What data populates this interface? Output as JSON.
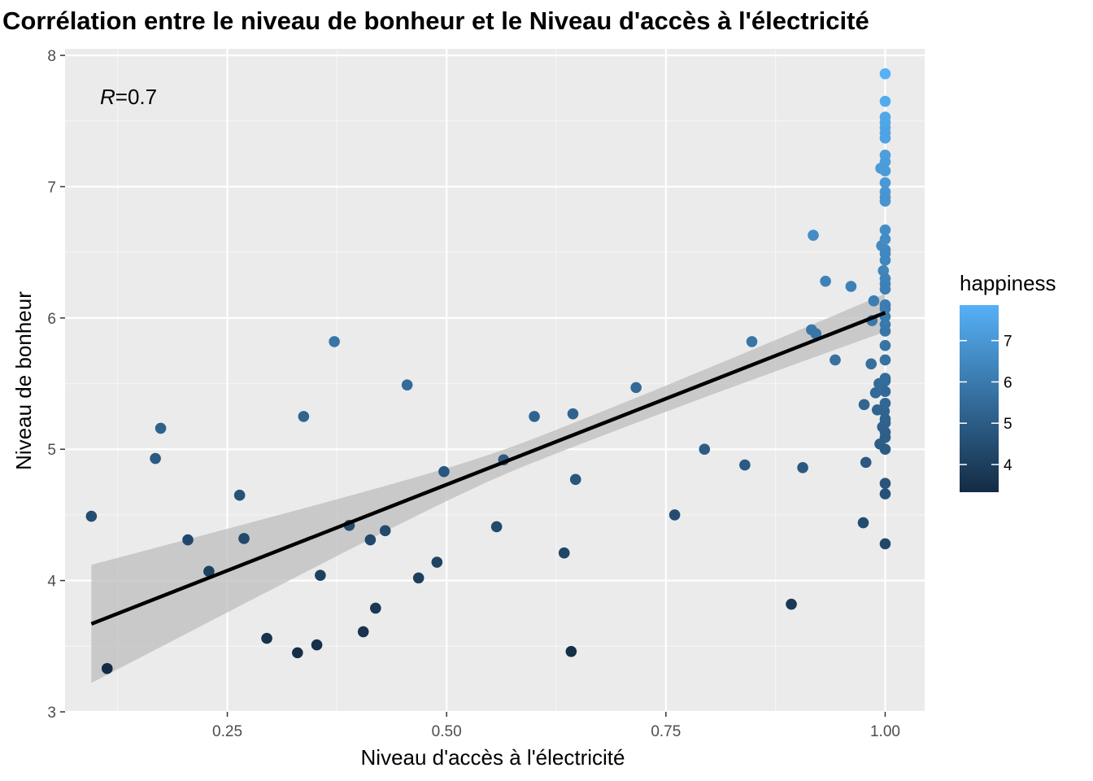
{
  "chart_data": {
    "type": "scatter",
    "title": "Corrélation entre le niveau de bonheur et le Niveau d'accès à l'électricité",
    "xlabel": "Niveau d'accès à l'électricité",
    "ylabel": "Niveau de bonheur",
    "xlim": [
      0.065,
      1.045
    ],
    "ylim": [
      3.0,
      8.05
    ],
    "x_ticks": [
      0.25,
      0.5,
      0.75,
      1.0
    ],
    "x_tick_labels": [
      "0.25",
      "0.50",
      "0.75",
      "1.00"
    ],
    "y_ticks": [
      3,
      4,
      5,
      6,
      7,
      8
    ],
    "y_tick_labels": [
      "3",
      "4",
      "5",
      "6",
      "7",
      "8"
    ],
    "grid": true,
    "annotation": {
      "R_label": "R",
      "eq": "=",
      "value": "0.7"
    },
    "regression": {
      "line": [
        [
          0.095,
          3.67
        ],
        [
          1.0,
          6.04
        ]
      ],
      "band_x": [
        0.095,
        1.0
      ],
      "band_low": [
        3.22,
        5.9
      ],
      "band_high": [
        4.12,
        6.19
      ],
      "line_color": "#000000",
      "band_color": "#bdbdbd"
    },
    "legend": {
      "title": "happiness",
      "ticks": [
        4,
        5,
        6,
        7
      ],
      "tick_labels": [
        "4",
        "5",
        "6",
        "7"
      ],
      "range": [
        3.33,
        7.86
      ],
      "color_low": "#132B43",
      "color_high": "#56B1F7",
      "position": "right"
    },
    "points": [
      {
        "x": 0.095,
        "y": 4.49
      },
      {
        "x": 0.113,
        "y": 3.33
      },
      {
        "x": 0.168,
        "y": 4.93
      },
      {
        "x": 0.174,
        "y": 5.16
      },
      {
        "x": 0.205,
        "y": 4.31
      },
      {
        "x": 0.229,
        "y": 4.07
      },
      {
        "x": 0.264,
        "y": 4.65
      },
      {
        "x": 0.269,
        "y": 4.32
      },
      {
        "x": 0.295,
        "y": 3.56
      },
      {
        "x": 0.33,
        "y": 3.45
      },
      {
        "x": 0.337,
        "y": 5.25
      },
      {
        "x": 0.352,
        "y": 3.51
      },
      {
        "x": 0.356,
        "y": 4.04
      },
      {
        "x": 0.372,
        "y": 5.82
      },
      {
        "x": 0.389,
        "y": 4.42
      },
      {
        "x": 0.405,
        "y": 3.61
      },
      {
        "x": 0.413,
        "y": 4.31
      },
      {
        "x": 0.419,
        "y": 3.79
      },
      {
        "x": 0.43,
        "y": 4.38
      },
      {
        "x": 0.455,
        "y": 5.49
      },
      {
        "x": 0.468,
        "y": 4.02
      },
      {
        "x": 0.489,
        "y": 4.14
      },
      {
        "x": 0.497,
        "y": 4.83
      },
      {
        "x": 0.557,
        "y": 4.41
      },
      {
        "x": 0.565,
        "y": 4.92
      },
      {
        "x": 0.6,
        "y": 5.25
      },
      {
        "x": 0.634,
        "y": 4.21
      },
      {
        "x": 0.642,
        "y": 3.46
      },
      {
        "x": 0.644,
        "y": 5.27
      },
      {
        "x": 0.647,
        "y": 4.77
      },
      {
        "x": 0.716,
        "y": 5.47
      },
      {
        "x": 0.76,
        "y": 4.5
      },
      {
        "x": 0.794,
        "y": 5.0
      },
      {
        "x": 0.84,
        "y": 4.88
      },
      {
        "x": 0.848,
        "y": 5.82
      },
      {
        "x": 0.893,
        "y": 3.82
      },
      {
        "x": 0.906,
        "y": 4.86
      },
      {
        "x": 0.916,
        "y": 5.91
      },
      {
        "x": 0.918,
        "y": 6.63
      },
      {
        "x": 0.921,
        "y": 5.88
      },
      {
        "x": 0.932,
        "y": 6.28
      },
      {
        "x": 0.943,
        "y": 5.68
      },
      {
        "x": 0.961,
        "y": 6.24
      },
      {
        "x": 0.975,
        "y": 4.44
      },
      {
        "x": 0.976,
        "y": 5.34
      },
      {
        "x": 0.978,
        "y": 4.9
      },
      {
        "x": 0.984,
        "y": 5.65
      },
      {
        "x": 0.985,
        "y": 5.98
      },
      {
        "x": 0.987,
        "y": 6.13
      },
      {
        "x": 0.989,
        "y": 5.43
      },
      {
        "x": 0.991,
        "y": 5.3
      },
      {
        "x": 0.993,
        "y": 5.5
      },
      {
        "x": 0.994,
        "y": 5.04
      },
      {
        "x": 0.995,
        "y": 7.14
      },
      {
        "x": 0.996,
        "y": 6.55
      },
      {
        "x": 0.997,
        "y": 5.17
      },
      {
        "x": 0.998,
        "y": 6.36
      },
      {
        "x": 0.999,
        "y": 5.29
      },
      {
        "x": 1.0,
        "y": 7.86
      },
      {
        "x": 1.0,
        "y": 7.65
      },
      {
        "x": 1.0,
        "y": 7.53
      },
      {
        "x": 1.0,
        "y": 7.49
      },
      {
        "x": 1.0,
        "y": 7.45
      },
      {
        "x": 1.0,
        "y": 7.41
      },
      {
        "x": 1.0,
        "y": 7.37
      },
      {
        "x": 1.0,
        "y": 7.24
      },
      {
        "x": 1.0,
        "y": 7.19
      },
      {
        "x": 1.0,
        "y": 7.12
      },
      {
        "x": 1.0,
        "y": 7.03
      },
      {
        "x": 1.0,
        "y": 6.96
      },
      {
        "x": 1.0,
        "y": 6.92
      },
      {
        "x": 1.0,
        "y": 6.89
      },
      {
        "x": 1.0,
        "y": 6.67
      },
      {
        "x": 1.0,
        "y": 6.6
      },
      {
        "x": 1.0,
        "y": 6.52
      },
      {
        "x": 1.0,
        "y": 6.49
      },
      {
        "x": 1.0,
        "y": 6.44
      },
      {
        "x": 1.0,
        "y": 6.3
      },
      {
        "x": 1.0,
        "y": 6.26
      },
      {
        "x": 1.0,
        "y": 6.22
      },
      {
        "x": 1.0,
        "y": 6.1
      },
      {
        "x": 1.0,
        "y": 6.07
      },
      {
        "x": 1.0,
        "y": 6.01
      },
      {
        "x": 1.0,
        "y": 5.95
      },
      {
        "x": 1.0,
        "y": 5.9
      },
      {
        "x": 1.0,
        "y": 5.79
      },
      {
        "x": 1.0,
        "y": 5.68
      },
      {
        "x": 1.0,
        "y": 5.54
      },
      {
        "x": 1.0,
        "y": 5.52
      },
      {
        "x": 1.0,
        "y": 5.44
      },
      {
        "x": 1.0,
        "y": 5.35
      },
      {
        "x": 1.0,
        "y": 5.23
      },
      {
        "x": 1.0,
        "y": 5.2
      },
      {
        "x": 1.0,
        "y": 5.13
      },
      {
        "x": 1.0,
        "y": 5.09
      },
      {
        "x": 1.0,
        "y": 5.0
      },
      {
        "x": 1.0,
        "y": 4.74
      },
      {
        "x": 1.0,
        "y": 4.66
      },
      {
        "x": 1.0,
        "y": 4.28
      }
    ]
  }
}
